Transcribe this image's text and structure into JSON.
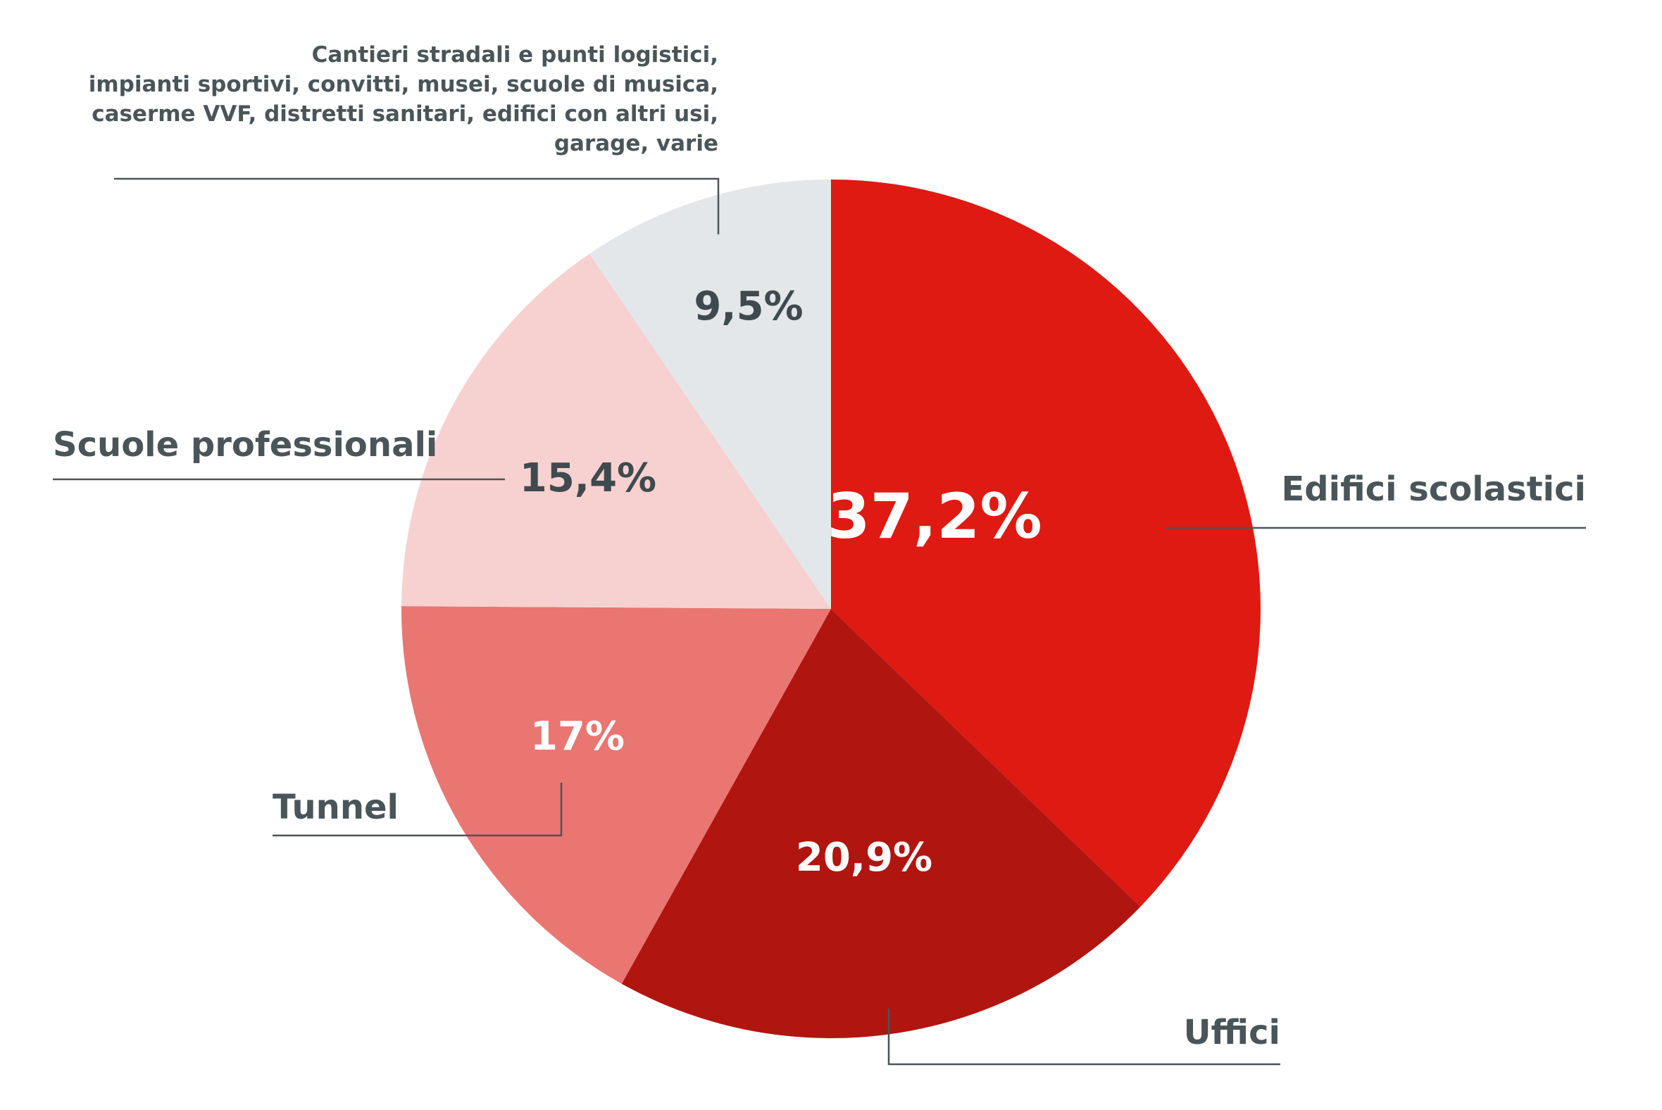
{
  "chart_data": {
    "type": "pie",
    "start": "top, clockwise",
    "slices": [
      {
        "category": "Edifici scolastici",
        "value": 37.2,
        "value_label": "37,2%",
        "color": "#de1a12",
        "label_color": "#ffffff"
      },
      {
        "category": "Uffici",
        "value": 20.9,
        "value_label": "20,9%",
        "color": "#b11510",
        "label_color": "#ffffff"
      },
      {
        "category": "Tunnel",
        "value": 17,
        "value_label": "17%",
        "color": "#e97671",
        "label_color": "#ffffff"
      },
      {
        "category": "Scuole professionali",
        "value": 15.4,
        "value_label": "15,4%",
        "color": "#f7d1d0",
        "label_color": "#3f4a4e"
      },
      {
        "category_lines": [
          "Cantieri stradali e punti logistici,",
          "impianti sportivi, convitti, musei, scuole di musica,",
          "caserme VVF, distretti sanitari, edifici con altri usi,",
          "garage, varie"
        ],
        "value": 9.5,
        "value_label": "9,5%",
        "color": "#e3e7e9",
        "label_color": "#3f4a4e"
      }
    ],
    "text_color": "#4a5559"
  }
}
